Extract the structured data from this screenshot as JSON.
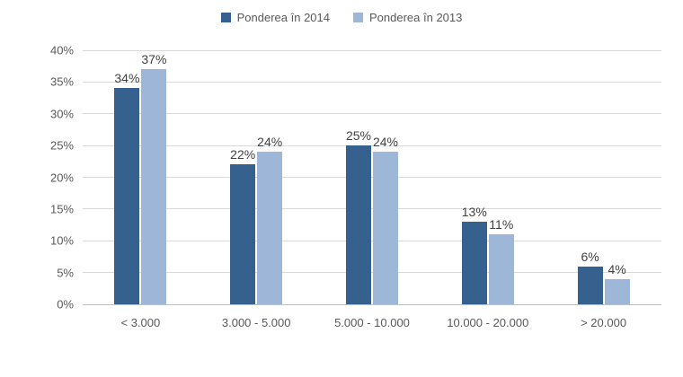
{
  "chart_data": {
    "type": "bar",
    "title": "",
    "categories": [
      "< 3.000",
      "3.000 - 5.000",
      "5.000 - 10.000",
      "10.000 - 20.000",
      "> 20.000"
    ],
    "series": [
      {
        "name": "Ponderea în 2014",
        "color": "#36618E",
        "values": [
          34,
          22,
          25,
          13,
          6
        ],
        "labels": [
          "34%",
          "22%",
          "25%",
          "13%",
          "6%"
        ]
      },
      {
        "name": "Ponderea în 2013",
        "color": "#9EB6D8",
        "values": [
          37,
          24,
          24,
          11,
          4
        ],
        "labels": [
          "37%",
          "24%",
          "24%",
          "11%",
          "4%"
        ]
      }
    ],
    "ylim": [
      0,
      40
    ],
    "ytick_step": 5,
    "ytick_labels": [
      "0%",
      "5%",
      "10%",
      "15%",
      "20%",
      "25%",
      "30%",
      "35%",
      "40%"
    ],
    "grid": true,
    "legend_position": "top",
    "value_suffix": "%",
    "colors": {
      "gridline": "#d9d9d9",
      "axis_line": "#bfbfbf",
      "tick_text": "#595959",
      "label_text": "#404040"
    }
  }
}
